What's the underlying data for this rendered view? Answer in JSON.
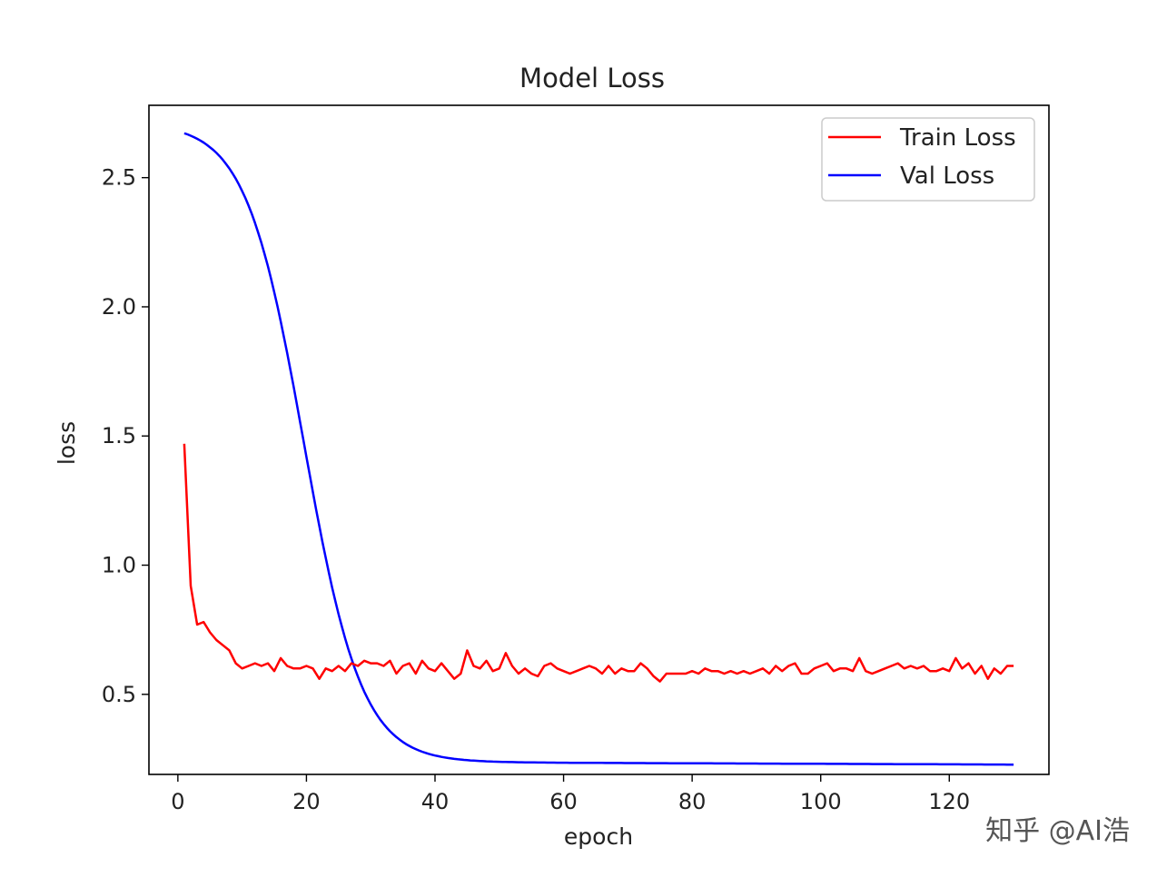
{
  "chart_data": {
    "type": "line",
    "title": "Model Loss",
    "xlabel": "epoch",
    "ylabel": "loss",
    "xlim": [
      -4.5,
      135.5
    ],
    "ylim": [
      0.19,
      2.78
    ],
    "xticks": [
      0,
      20,
      40,
      60,
      80,
      100,
      120
    ],
    "yticks": [
      0.5,
      1.0,
      1.5,
      2.0,
      2.5
    ],
    "xtick_labels": [
      "0",
      "20",
      "40",
      "60",
      "80",
      "100",
      "120"
    ],
    "ytick_labels": [
      "0.5",
      "1.0",
      "1.5",
      "2.0",
      "2.5"
    ],
    "legend_position": "top-right",
    "series": [
      {
        "name": "Train Loss",
        "color": "#ff0000",
        "x": [
          1,
          2,
          3,
          4,
          5,
          6,
          7,
          8,
          9,
          10,
          11,
          12,
          13,
          14,
          15,
          16,
          17,
          18,
          19,
          20,
          21,
          22,
          23,
          24,
          25,
          26,
          27,
          28,
          29,
          30,
          31,
          32,
          33,
          34,
          35,
          36,
          37,
          38,
          39,
          40,
          41,
          42,
          43,
          44,
          45,
          46,
          47,
          48,
          49,
          50,
          51,
          52,
          53,
          54,
          55,
          56,
          57,
          58,
          59,
          60,
          61,
          62,
          63,
          64,
          65,
          66,
          67,
          68,
          69,
          70,
          71,
          72,
          73,
          74,
          75,
          76,
          77,
          78,
          79,
          80,
          81,
          82,
          83,
          84,
          85,
          86,
          87,
          88,
          89,
          90,
          91,
          92,
          93,
          94,
          95,
          96,
          97,
          98,
          99,
          100,
          101,
          102,
          103,
          104,
          105,
          106,
          107,
          108,
          109,
          110,
          111,
          112,
          113,
          114,
          115,
          116,
          117,
          118,
          119,
          120,
          121,
          122,
          123,
          124,
          125,
          126,
          127,
          128,
          129,
          130
        ],
        "values": [
          1.47,
          0.92,
          0.77,
          0.78,
          0.74,
          0.71,
          0.69,
          0.67,
          0.62,
          0.6,
          0.61,
          0.62,
          0.61,
          0.62,
          0.59,
          0.64,
          0.61,
          0.6,
          0.6,
          0.61,
          0.6,
          0.56,
          0.6,
          0.59,
          0.61,
          0.59,
          0.62,
          0.61,
          0.63,
          0.62,
          0.62,
          0.61,
          0.63,
          0.58,
          0.61,
          0.62,
          0.58,
          0.63,
          0.6,
          0.59,
          0.62,
          0.59,
          0.56,
          0.58,
          0.67,
          0.61,
          0.6,
          0.63,
          0.59,
          0.6,
          0.66,
          0.61,
          0.58,
          0.6,
          0.58,
          0.57,
          0.61,
          0.62,
          0.6,
          0.59,
          0.58,
          0.59,
          0.6,
          0.61,
          0.6,
          0.58,
          0.61,
          0.58,
          0.6,
          0.59,
          0.59,
          0.62,
          0.6,
          0.57,
          0.55,
          0.58,
          0.58,
          0.58,
          0.58,
          0.59,
          0.58,
          0.6,
          0.59,
          0.59,
          0.58,
          0.59,
          0.58,
          0.59,
          0.58,
          0.59,
          0.6,
          0.58,
          0.61,
          0.59,
          0.61,
          0.62,
          0.58,
          0.58,
          0.6,
          0.61,
          0.62,
          0.59,
          0.6,
          0.6,
          0.59,
          0.64,
          0.59,
          0.58,
          0.59,
          0.6,
          0.61,
          0.62,
          0.6,
          0.61,
          0.6,
          0.61,
          0.59,
          0.59,
          0.6,
          0.59,
          0.64,
          0.6,
          0.62,
          0.58,
          0.61,
          0.56,
          0.6,
          0.58,
          0.61,
          0.61
        ]
      },
      {
        "name": "Val Loss",
        "color": "#0000ff",
        "values_note": "computed in script from logistic fit of the plotted curve",
        "x_range": [
          1,
          130
        ],
        "curve": {
          "floor": 0.235,
          "amplitude": 2.47,
          "midpoint": 19.6,
          "scale": 4.5,
          "tail_slope": -0.0001
        }
      }
    ]
  },
  "watermark": "知乎 @AI浩"
}
